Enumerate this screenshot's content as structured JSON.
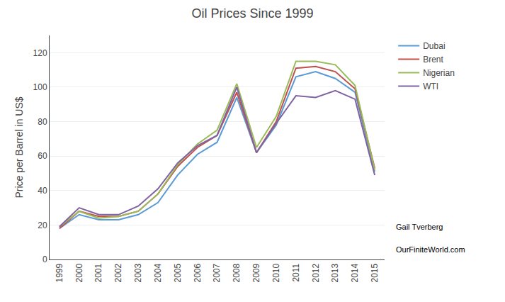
{
  "chart_data": {
    "type": "line",
    "title": "Oil Prices Since 1999",
    "ylabel": "Price per Barrel in US$",
    "x": [
      1999,
      2000,
      2001,
      2002,
      2003,
      2004,
      2005,
      2006,
      2007,
      2008,
      2009,
      2010,
      2011,
      2012,
      2013,
      2014,
      2015
    ],
    "series": [
      {
        "name": "Dubai",
        "color": "#5B9BD5",
        "values": [
          18,
          26,
          23,
          23,
          26,
          33,
          49,
          61,
          68,
          94,
          62,
          78,
          106,
          109,
          105,
          97,
          51
        ]
      },
      {
        "name": "Brent",
        "color": "#C0504D",
        "values": [
          18,
          28,
          25,
          25,
          28,
          38,
          54,
          65,
          72,
          97,
          62,
          80,
          111,
          112,
          109,
          99,
          53
        ]
      },
      {
        "name": "Nigerian",
        "color": "#9BBB59",
        "values": [
          19,
          28,
          24,
          25,
          28,
          38,
          55,
          67,
          75,
          102,
          65,
          83,
          115,
          115,
          113,
          101,
          52
        ]
      },
      {
        "name": "WTI",
        "color": "#8064A2",
        "values": [
          19,
          30,
          26,
          26,
          31,
          41,
          56,
          66,
          72,
          100,
          62,
          79,
          95,
          94,
          98,
          93,
          49
        ]
      }
    ],
    "xlim": [
      1998.5,
      2015.5
    ],
    "xticks": [
      1999,
      2000,
      2001,
      2002,
      2003,
      2004,
      2005,
      2006,
      2007,
      2008,
      2009,
      2010,
      2011,
      2012,
      2013,
      2014,
      2015
    ],
    "ylim": [
      0,
      130
    ],
    "yticks": [
      0,
      20,
      40,
      60,
      80,
      100,
      120
    ],
    "grid": "y",
    "legend": "right",
    "annotations": [
      "Gail Tverberg",
      "OurFiniteWorld.com"
    ]
  }
}
